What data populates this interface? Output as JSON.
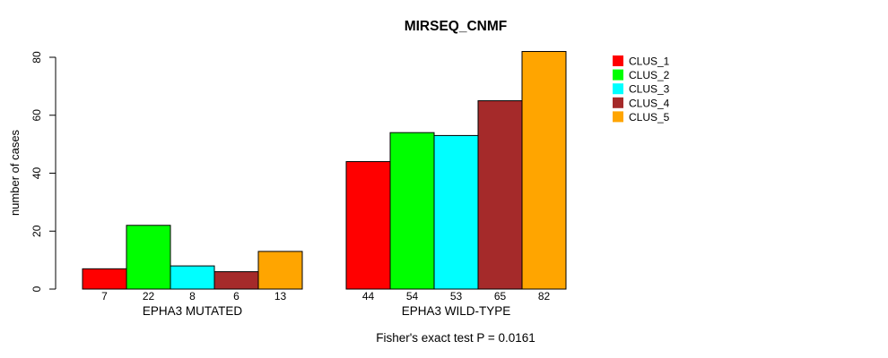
{
  "chart_data": {
    "type": "bar",
    "title": "MIRSEQ_CNMF",
    "ylabel": "number of cases",
    "xlabel": "",
    "ylim": [
      0,
      80
    ],
    "yticks": [
      0,
      20,
      40,
      60,
      80
    ],
    "grid": false,
    "legend_position": "top-right",
    "bar_border_color": "#000000",
    "background_color": "#ffffff",
    "series": [
      {
        "name": "CLUS_1",
        "color": "#FF0000"
      },
      {
        "name": "CLUS_2",
        "color": "#00FF00"
      },
      {
        "name": "CLUS_3",
        "color": "#00FFFF"
      },
      {
        "name": "CLUS_4",
        "color": "#A52A2A"
      },
      {
        "name": "CLUS_5",
        "color": "#FFA500"
      }
    ],
    "groups": [
      {
        "label": "EPHA3 MUTATED",
        "values": [
          7,
          22,
          8,
          6,
          13
        ]
      },
      {
        "label": "EPHA3 WILD-TYPE",
        "values": [
          44,
          54,
          53,
          65,
          82
        ]
      }
    ],
    "annotation": "Fisher's exact test P = 0.0161"
  }
}
